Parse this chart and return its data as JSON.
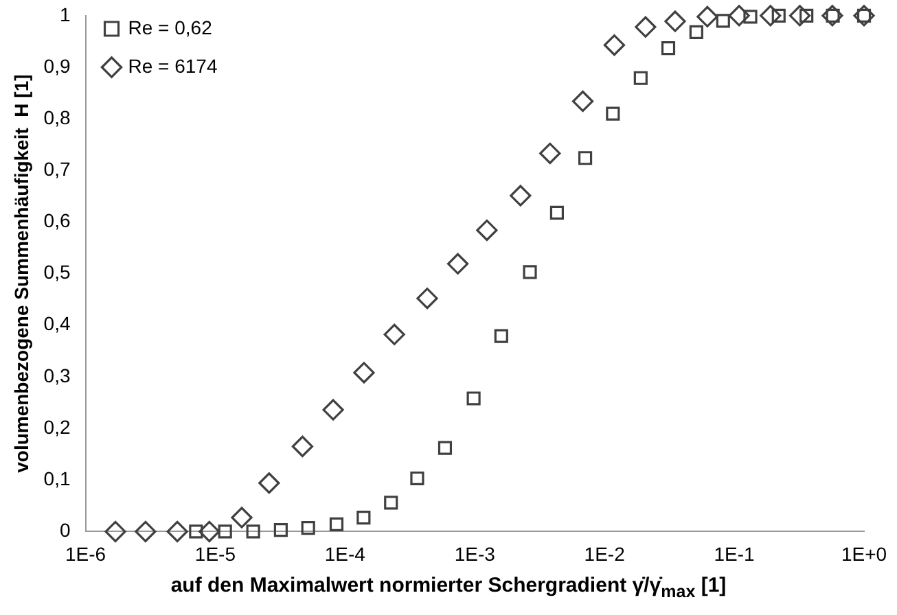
{
  "chart_data": {
    "type": "scatter",
    "xlabel": "auf den Maximalwert normierter Schergradient  γ̇/γ̇$_{max}$ [1]",
    "ylabel": "volumenbezogene Summenhäufigkeit  H [1]",
    "log": "x",
    "grid": false,
    "legend": "top left",
    "xlim": [
      1e-06,
      1
    ],
    "ylim": [
      0,
      1
    ],
    "xticks": [
      {
        "value": 1e-06,
        "label": "1E-6"
      },
      {
        "value": 1e-05,
        "label": "1E-5"
      },
      {
        "value": 0.0001,
        "label": "1E-4"
      },
      {
        "value": 0.001,
        "label": "1E-3"
      },
      {
        "value": 0.01,
        "label": "1E-2"
      },
      {
        "value": 0.1,
        "label": "1E-1"
      },
      {
        "value": 1,
        "label": "1E+0"
      }
    ],
    "yticks": [
      0,
      {
        "value": 0.1,
        "label": "0,1"
      },
      {
        "value": 0.2,
        "label": "0,2"
      },
      {
        "value": 0.3,
        "label": "0,3"
      },
      {
        "value": 0.4,
        "label": "0,4"
      },
      {
        "value": 0.5,
        "label": "0,5"
      },
      {
        "value": 0.6,
        "label": "0,6"
      },
      {
        "value": 0.7,
        "label": "0,7"
      },
      {
        "value": 0.8,
        "label": "0,8"
      },
      {
        "value": 0.9,
        "label": "0,9"
      },
      1
    ],
    "series": [
      {
        "name": "Re = 0,62",
        "color": "#404040",
        "marker": "square",
        "x": [
          7.1e-06,
          1.19e-05,
          1.96e-05,
          3.2e-05,
          5.2e-05,
          8.6e-05,
          0.000139,
          0.000226,
          0.00036,
          0.00059,
          0.00098,
          0.0016,
          0.00266,
          0.0043,
          0.0071,
          0.0116,
          0.019,
          0.031,
          0.051,
          0.082,
          0.133,
          0.22,
          0.36,
          0.575,
          1
        ],
        "values": [
          0,
          0,
          0,
          0.003,
          0.007,
          0.014,
          0.027,
          0.056,
          0.103,
          0.162,
          0.258,
          0.379,
          0.503,
          0.618,
          0.724,
          0.81,
          0.879,
          0.937,
          0.968,
          0.99,
          0.998,
          1,
          1,
          1,
          1
        ]
      },
      {
        "name": "Re = 6174",
        "color": "#404040",
        "marker": "diamond",
        "x": [
          1.7e-06,
          2.9e-06,
          5.1e-06,
          9e-06,
          1.6e-05,
          2.6e-05,
          4.7e-05,
          8.1e-05,
          0.00014,
          0.00024,
          0.00043,
          0.00074,
          0.00124,
          0.00225,
          0.0038,
          0.0068,
          0.0119,
          0.0207,
          0.035,
          0.062,
          0.109,
          0.19,
          0.32,
          0.57,
          1
        ],
        "values": [
          0,
          0,
          0,
          0,
          0.027,
          0.094,
          0.165,
          0.236,
          0.308,
          0.382,
          0.452,
          0.519,
          0.584,
          0.651,
          0.733,
          0.834,
          0.943,
          0.978,
          0.989,
          0.998,
          1,
          1,
          1,
          1,
          1
        ]
      }
    ]
  }
}
